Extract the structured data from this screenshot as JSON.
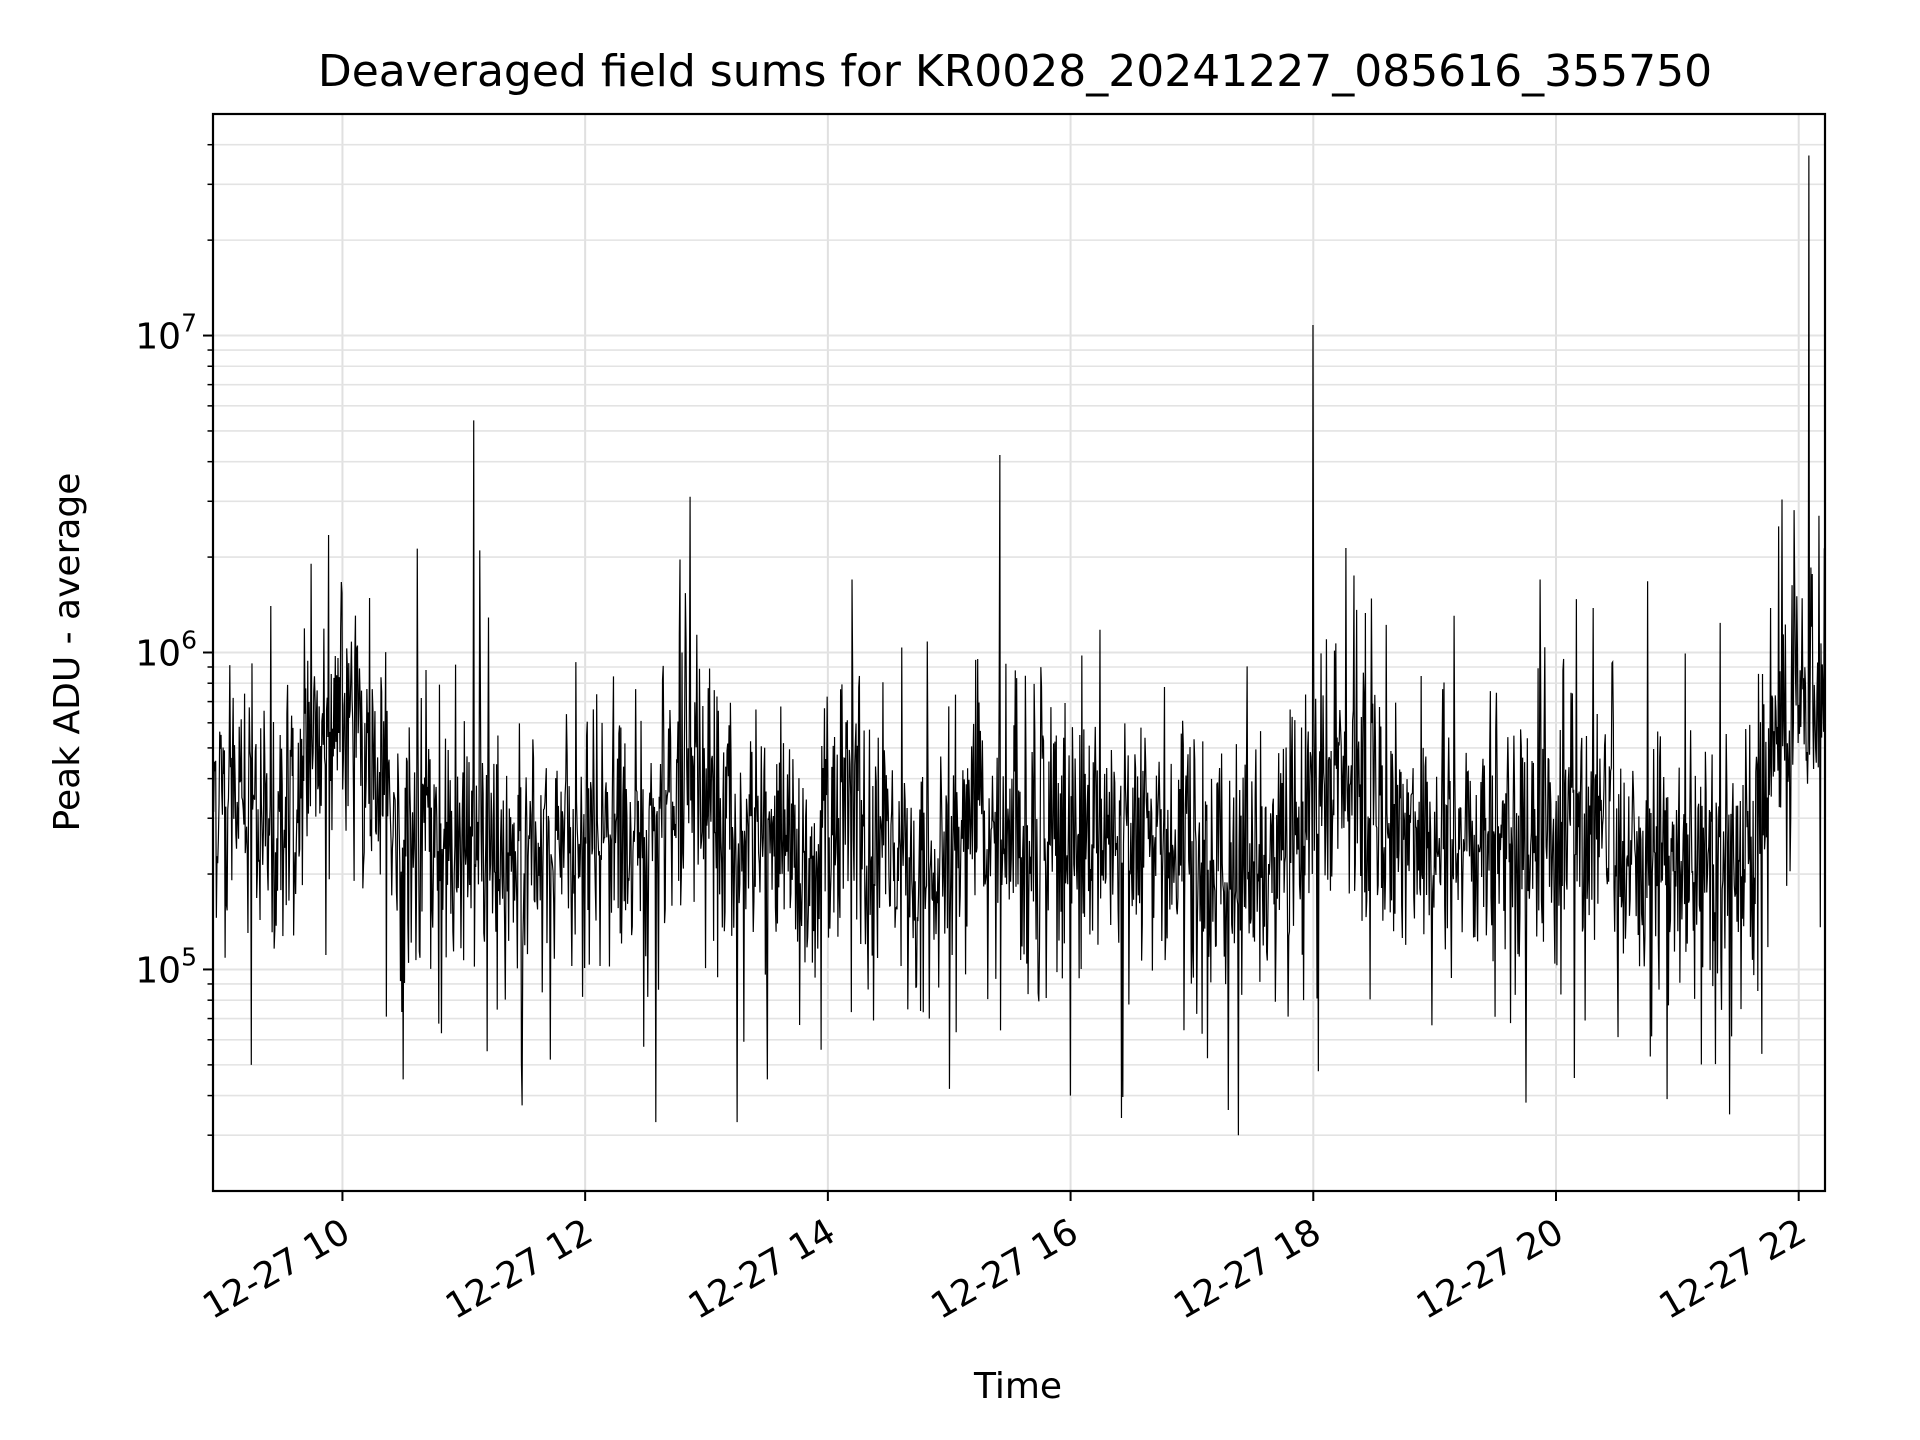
{
  "chart_data": {
    "type": "line",
    "title": "Deaveraged field sums for KR0028_20241227_085616_355750",
    "xlabel": "Time",
    "ylabel": "Peak ADU - average",
    "x_axis": {
      "type": "time",
      "range": [
        "12-27 08:56",
        "12-27 22:13"
      ],
      "ticks": [
        "12-27 10",
        "12-27 12",
        "12-27 14",
        "12-27 16",
        "12-27 18",
        "12-27 20",
        "12-27 22"
      ]
    },
    "y_axis": {
      "scale": "log",
      "range": [
        20000,
        50000000
      ],
      "ticks": [
        {
          "value": 100000,
          "base": "10",
          "exp": "5"
        },
        {
          "value": 1000000,
          "base": "10",
          "exp": "6"
        },
        {
          "value": 10000000,
          "base": "10",
          "exp": "7"
        }
      ]
    },
    "grid": true,
    "line_color": "#000000",
    "series": [
      {
        "baseline": [
          [
            "12-27 08:56",
            380000
          ],
          [
            "12-27 09:30",
            300000
          ],
          [
            "12-27 09:50",
            600000
          ],
          [
            "12-27 10:10",
            550000
          ],
          [
            "12-27 10:30",
            240000
          ],
          [
            "12-27 11:00",
            230000
          ],
          [
            "12-27 11:30",
            220000
          ],
          [
            "12-27 12:00",
            230000
          ],
          [
            "12-27 12:30",
            300000
          ],
          [
            "12-27 12:50",
            420000
          ],
          [
            "12-27 13:10",
            300000
          ],
          [
            "12-27 13:30",
            260000
          ],
          [
            "12-27 13:50",
            170000
          ],
          [
            "12-27 14:10",
            420000
          ],
          [
            "12-27 14:20",
            190000
          ],
          [
            "12-27 14:50",
            200000
          ],
          [
            "12-27 15:10",
            270000
          ],
          [
            "12-27 15:40",
            260000
          ],
          [
            "12-27 16:30",
            240000
          ],
          [
            "12-27 17:20",
            200000
          ],
          [
            "12-27 17:50",
            260000
          ],
          [
            "12-27 18:20",
            440000
          ],
          [
            "12-27 18:50",
            260000
          ],
          [
            "12-27 19:30",
            240000
          ],
          [
            "12-27 20:00",
            260000
          ],
          [
            "12-27 20:30",
            240000
          ],
          [
            "12-27 21:00",
            210000
          ],
          [
            "12-27 21:40",
            240000
          ],
          [
            "12-27 21:43",
            480000
          ],
          [
            "12-27 22:00",
            700000
          ],
          [
            "12-27 22:13",
            1000000
          ]
        ],
        "spikes": [
          [
            "12-27 11:05",
            5400000
          ],
          [
            "12-27 11:08",
            2100000
          ],
          [
            "12-27 12:52",
            3100000
          ],
          [
            "12-27 15:25",
            4200000
          ],
          [
            "12-27 18:00",
            10800000
          ],
          [
            "12-27 22:05",
            37000000
          ],
          [
            "12-27 12:35",
            1700000
          ],
          [
            "12-27 14:12",
            1700000
          ],
          [
            "12-27 19:52",
            1700000
          ],
          [
            "12-27 21:50",
            2500000
          ],
          [
            "12-27 22:10",
            2700000
          ],
          [
            "12-27 09:15",
            1600000
          ],
          [
            "12-27 18:20",
            1750000
          ]
        ],
        "dips": [
          [
            "12-27 12:35",
            33000
          ],
          [
            "12-27 13:15",
            33000
          ],
          [
            "12-27 16:25",
            34000
          ],
          [
            "12-27 17:23",
            30000
          ],
          [
            "12-27 19:45",
            38000
          ],
          [
            "12-27 20:55",
            39000
          ],
          [
            "12-27 10:30",
            45000
          ],
          [
            "12-27 13:30",
            45000
          ],
          [
            "12-27 16:00",
            40000
          ],
          [
            "12-27 09:15",
            50000
          ],
          [
            "12-27 15:00",
            42000
          ]
        ],
        "samples": 2400
      }
    ]
  }
}
